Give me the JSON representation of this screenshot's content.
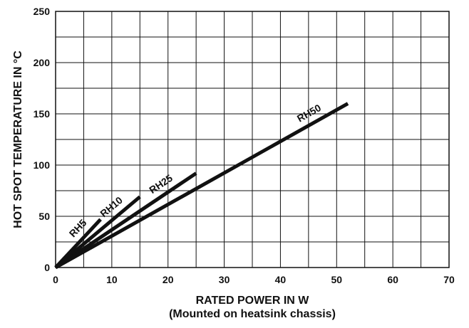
{
  "chart_data": {
    "type": "line",
    "title": "",
    "xlabel": "RATED POWER IN W",
    "xlabel_sub": "(Mounted on heatsink chassis)",
    "ylabel": "HOT SPOT TEMPERATURE IN °C",
    "xlim": [
      0,
      70
    ],
    "ylim": [
      0,
      250
    ],
    "xticks": [
      "0",
      "10",
      "20",
      "30",
      "40",
      "50",
      "60",
      "70"
    ],
    "yticks": [
      "0",
      "50",
      "100",
      "150",
      "200",
      "250"
    ],
    "grid": true,
    "series": [
      {
        "name": "RH5",
        "x": [
          0,
          8
        ],
        "y": [
          0,
          47
        ]
      },
      {
        "name": "RH10",
        "x": [
          0,
          15
        ],
        "y": [
          0,
          69
        ]
      },
      {
        "name": "RH25",
        "x": [
          0,
          25
        ],
        "y": [
          0,
          92
        ]
      },
      {
        "name": "RH50",
        "x": [
          0,
          52
        ],
        "y": [
          0,
          160
        ]
      }
    ],
    "line_color": "#111111"
  }
}
